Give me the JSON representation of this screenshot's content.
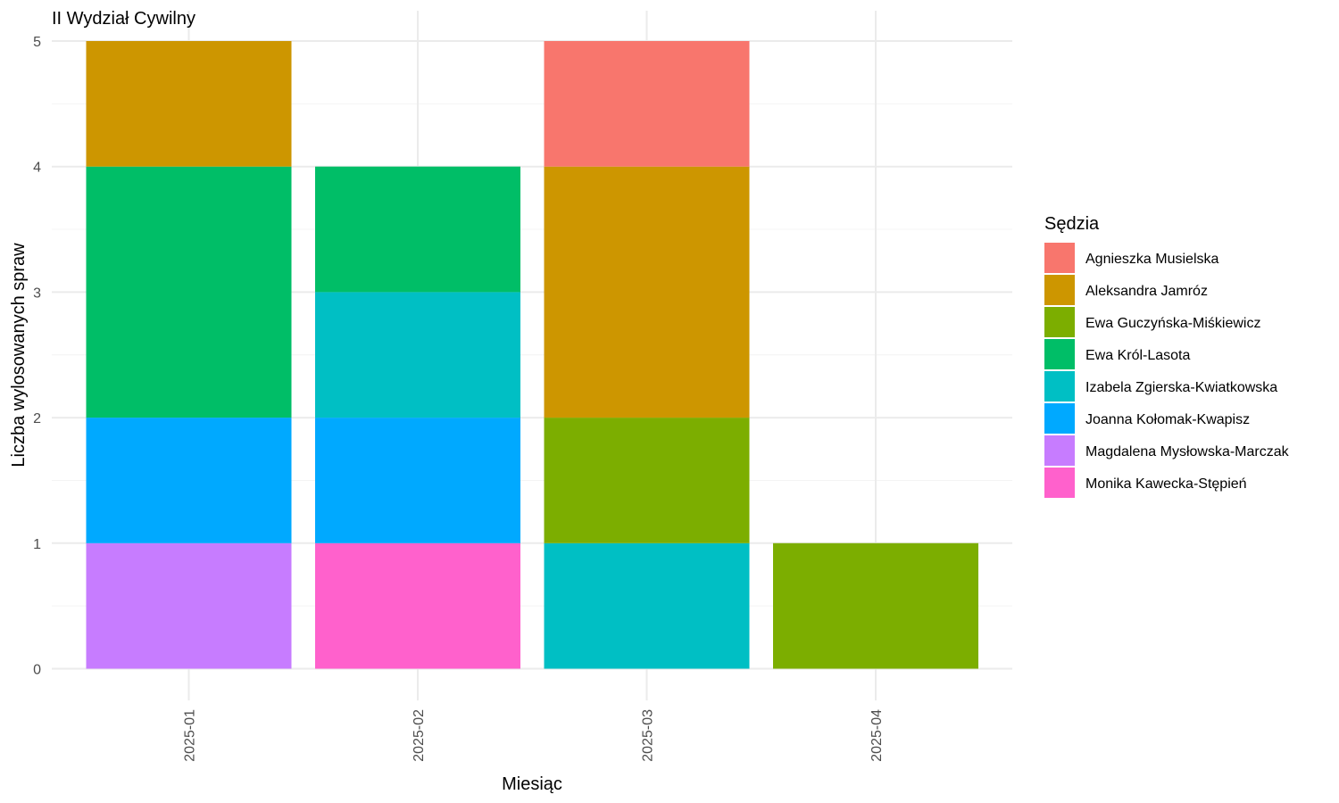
{
  "chart_data": {
    "type": "bar",
    "stacked": true,
    "title": "II Wydział Cywilny",
    "xlabel": "Miesiąc",
    "ylabel": "Liczba wylosowanych spraw",
    "ylim": [
      0,
      5
    ],
    "yticks": [
      0,
      1,
      2,
      3,
      4,
      5
    ],
    "grid": true,
    "legend": {
      "title": "Sędzia",
      "position": "right"
    },
    "categories": [
      "2025-01",
      "2025-02",
      "2025-03",
      "2025-04"
    ],
    "series": [
      {
        "name": "Agnieszka Musielska",
        "color": "#F8766D",
        "values": [
          0,
          0,
          1,
          0
        ]
      },
      {
        "name": "Aleksandra Jamróz",
        "color": "#CD9600",
        "values": [
          1,
          0,
          2,
          0
        ]
      },
      {
        "name": "Ewa Guczyńska-Miśkiewicz",
        "color": "#7CAE00",
        "values": [
          0,
          0,
          1,
          1
        ]
      },
      {
        "name": "Ewa Król-Lasota",
        "color": "#00BE67",
        "values": [
          2,
          1,
          0,
          0
        ]
      },
      {
        "name": "Izabela Zgierska-Kwiatkowska",
        "color": "#00BFC4",
        "values": [
          0,
          1,
          1,
          0
        ]
      },
      {
        "name": "Joanna Kołomak-Kwapisz",
        "color": "#00A9FF",
        "values": [
          1,
          1,
          0,
          0
        ]
      },
      {
        "name": "Magdalena Mysłowska-Marczak",
        "color": "#C77CFF",
        "values": [
          1,
          0,
          0,
          0
        ]
      },
      {
        "name": "Monika Kawecka-Stępień",
        "color": "#FF61CC",
        "values": [
          0,
          1,
          0,
          0
        ]
      }
    ]
  }
}
